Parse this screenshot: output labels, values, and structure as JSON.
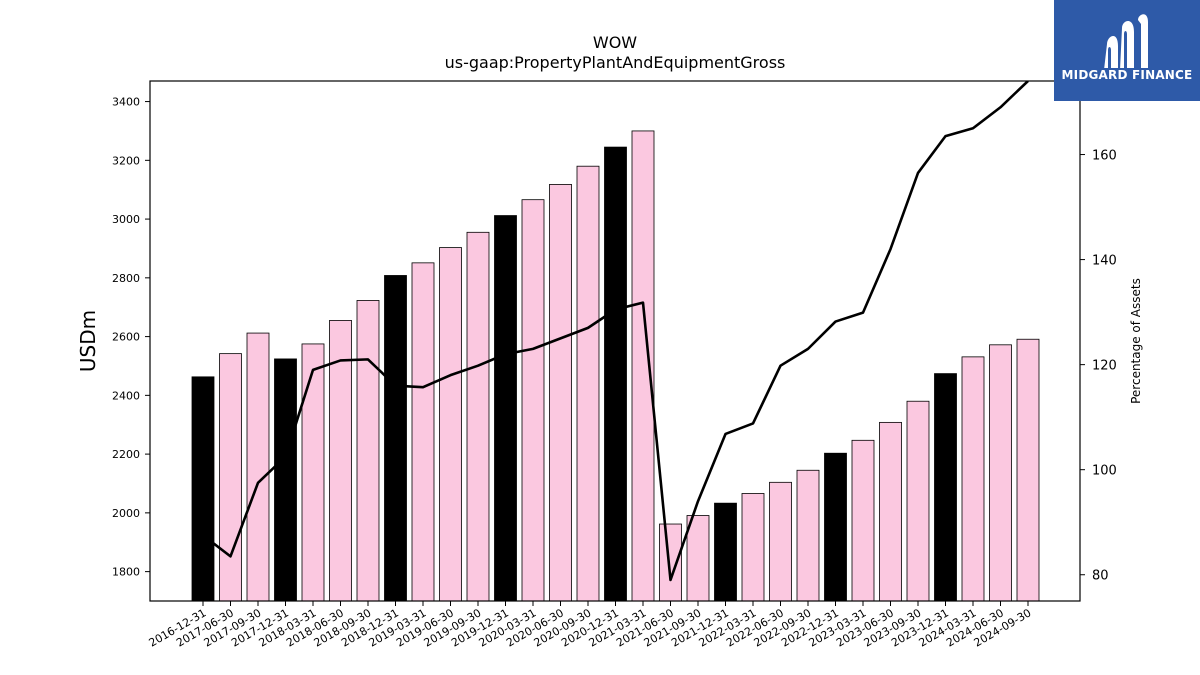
{
  "brand": {
    "name": "MIDGARD FINANCE",
    "bg_color": "#2e5aa8"
  },
  "chart_data": {
    "type": "bar",
    "title": "WOW",
    "subtitle": "us-gaap:PropertyPlantAndEquipmentGross",
    "ylabel": "USDm",
    "y2label": "Percentage of Assets",
    "ylim": [
      1700,
      3470
    ],
    "y2lim": [
      75,
      174
    ],
    "yticks": [
      1800,
      2000,
      2200,
      2400,
      2600,
      2800,
      3000,
      3200,
      3400
    ],
    "y2ticks": [
      80,
      100,
      120,
      140,
      160
    ],
    "grid": false,
    "categories": [
      "2016-12-31",
      "2017-06-30",
      "2017-09-30",
      "2017-12-31",
      "2018-03-31",
      "2018-06-30",
      "2018-09-30",
      "2018-12-31",
      "2019-03-31",
      "2019-06-30",
      "2019-09-30",
      "2019-12-31",
      "2020-03-31",
      "2020-06-30",
      "2020-09-30",
      "2020-12-31",
      "2021-03-31",
      "2021-06-30",
      "2021-09-30",
      "2021-12-31",
      "2022-03-31",
      "2022-06-30",
      "2022-09-30",
      "2022-12-31",
      "2023-03-31",
      "2023-06-30",
      "2023-09-30",
      "2023-12-31",
      "2024-03-31",
      "2024-06-30",
      "2024-09-30"
    ],
    "series": [
      {
        "type": "bar",
        "values": [
          2463,
          2542,
          2612,
          2524,
          2575,
          2655,
          2723,
          2808,
          2851,
          2903,
          2955,
          3012,
          3066,
          3118,
          3180,
          3245,
          3300,
          1962,
          1991,
          2033,
          2066,
          2104,
          2145,
          2203,
          2247,
          2308,
          2380,
          2474,
          2531,
          2572,
          2591
        ],
        "colors": [
          "#000000",
          "#fbc8e0",
          "#fbc8e0",
          "#000000",
          "#fbc8e0",
          "#fbc8e0",
          "#fbc8e0",
          "#000000",
          "#fbc8e0",
          "#fbc8e0",
          "#fbc8e0",
          "#000000",
          "#fbc8e0",
          "#fbc8e0",
          "#fbc8e0",
          "#000000",
          "#fbc8e0",
          "#fbc8e0",
          "#fbc8e0",
          "#000000",
          "#fbc8e0",
          "#fbc8e0",
          "#fbc8e0",
          "#000000",
          "#fbc8e0",
          "#fbc8e0",
          "#fbc8e0",
          "#000000",
          "#fbc8e0",
          "#fbc8e0",
          "#fbc8e0"
        ]
      },
      {
        "type": "line",
        "axis": "right",
        "color": "#000000",
        "values": [
          87.5,
          83.5,
          97.5,
          102.5,
          119.0,
          120.8,
          121.0,
          116.0,
          115.7,
          118.0,
          119.8,
          122.0,
          123.0,
          125.0,
          127.0,
          130.5,
          131.8,
          79.0,
          94.0,
          106.8,
          108.8,
          119.8,
          123.0,
          128.2,
          129.9,
          142.0,
          156.5,
          163.5,
          165.0,
          169.0,
          174.0
        ]
      }
    ]
  }
}
